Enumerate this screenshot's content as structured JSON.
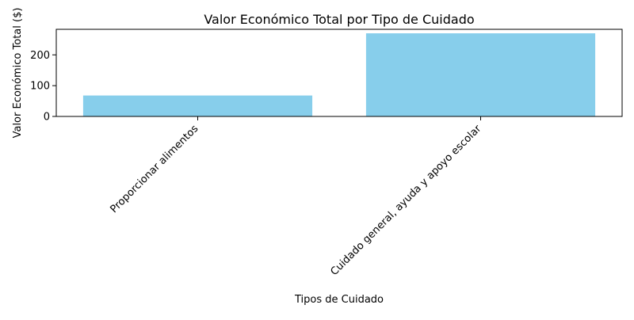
{
  "chart_data": {
    "type": "bar",
    "title": "Valor Económico Total por Tipo de Cuidado",
    "xlabel": "Tipos de Cuidado",
    "ylabel": "Valor Económico Total ($)",
    "categories": [
      "Proporcionar alimentos",
      "Cuidado general, ayuda y apoyo escolar"
    ],
    "values": [
      68,
      270
    ],
    "ylim": [
      0,
      283
    ],
    "yticks": [
      0,
      100,
      200
    ],
    "bar_color": "#87CEEB",
    "grid": false,
    "legend": "none"
  }
}
